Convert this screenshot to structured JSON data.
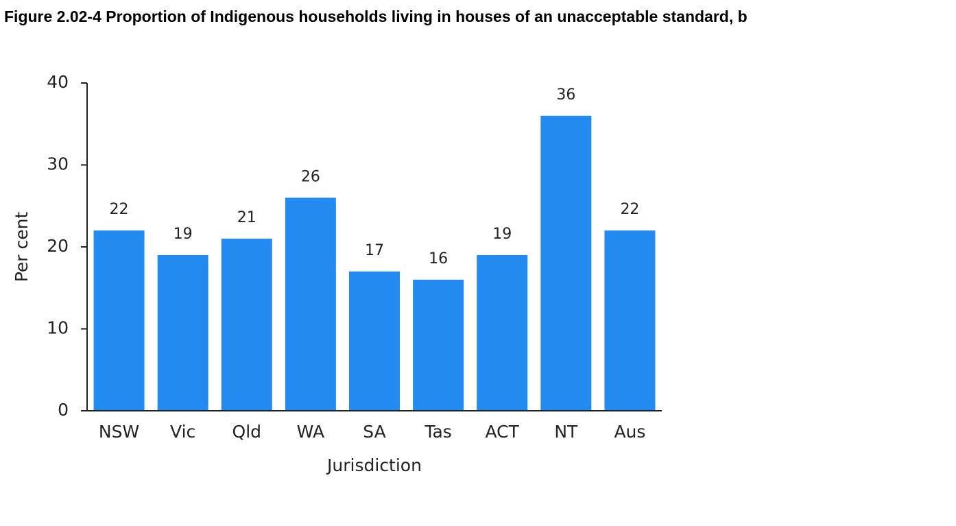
{
  "chart_data": {
    "type": "bar",
    "title": "Figure 2.02-4 Proportion of Indigenous households living in houses of an unacceptable standard, b",
    "x_label": "Jurisdiction",
    "y_label": "Per cent",
    "categories": [
      "NSW",
      "Vic",
      "Qld",
      "WA",
      "SA",
      "Tas",
      "ACT",
      "NT",
      "Aus"
    ],
    "values": [
      22,
      19,
      21,
      26,
      17,
      16,
      19,
      36,
      22
    ],
    "color": "#238bef",
    "ylim": [
      0,
      40
    ],
    "yticks": [
      0,
      10,
      20,
      30,
      40
    ],
    "grid": false
  }
}
